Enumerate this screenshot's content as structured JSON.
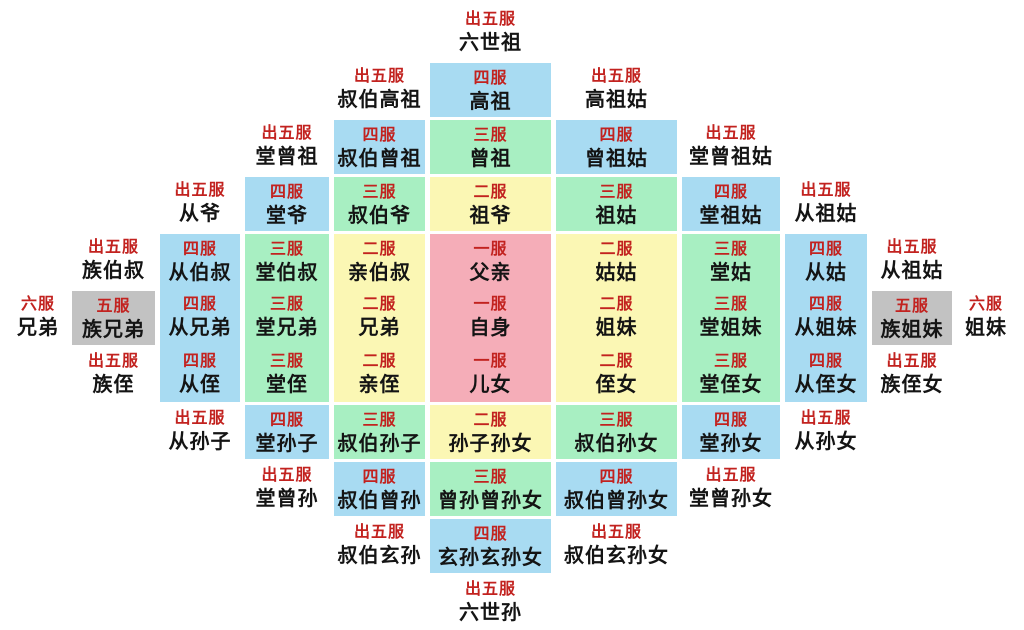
{
  "palette": {
    "rank_label_text": "#c2221f",
    "relation_name_text": "#141414",
    "background": "#ffffff",
    "rank_colors": {
      "一服": "#f5adb8",
      "二服": "#fbf7b4",
      "三服": "#a8efc2",
      "四服": "#a8dbf2",
      "五服": "#c2c2c2",
      "六服": "#ffffff",
      "出五服": "#ffffff"
    }
  },
  "grid": {
    "rows": 11,
    "cols": 11,
    "cells": [
      {
        "r": 1,
        "c": 5,
        "rank": "出五服",
        "name": "六世祖"
      },
      {
        "r": 2,
        "c": 4,
        "rank": "出五服",
        "name": "叔伯高祖"
      },
      {
        "r": 2,
        "c": 5,
        "rank": "四服",
        "name": "高祖"
      },
      {
        "r": 2,
        "c": 6,
        "rank": "出五服",
        "name": "高祖姑"
      },
      {
        "r": 3,
        "c": 3,
        "rank": "出五服",
        "name": "堂曾祖"
      },
      {
        "r": 3,
        "c": 4,
        "rank": "四服",
        "name": "叔伯曾祖"
      },
      {
        "r": 3,
        "c": 5,
        "rank": "三服",
        "name": "曾祖"
      },
      {
        "r": 3,
        "c": 6,
        "rank": "四服",
        "name": "曾祖姑"
      },
      {
        "r": 3,
        "c": 7,
        "rank": "出五服",
        "name": "堂曾祖姑"
      },
      {
        "r": 4,
        "c": 2,
        "rank": "出五服",
        "name": "从爷"
      },
      {
        "r": 4,
        "c": 3,
        "rank": "四服",
        "name": "堂爷"
      },
      {
        "r": 4,
        "c": 4,
        "rank": "三服",
        "name": "叔伯爷"
      },
      {
        "r": 4,
        "c": 5,
        "rank": "二服",
        "name": "祖爷"
      },
      {
        "r": 4,
        "c": 6,
        "rank": "三服",
        "name": "祖姑"
      },
      {
        "r": 4,
        "c": 7,
        "rank": "四服",
        "name": "堂祖姑"
      },
      {
        "r": 4,
        "c": 8,
        "rank": "出五服",
        "name": "从祖姑"
      },
      {
        "r": 5,
        "c": 1,
        "rank": "出五服",
        "name": "族伯叔"
      },
      {
        "r": 5,
        "c": 2,
        "rank": "四服",
        "name": "从伯叔"
      },
      {
        "r": 5,
        "c": 3,
        "rank": "三服",
        "name": "堂伯叔"
      },
      {
        "r": 5,
        "c": 4,
        "rank": "二服",
        "name": "亲伯叔"
      },
      {
        "r": 5,
        "c": 5,
        "rank": "一服",
        "name": "父亲"
      },
      {
        "r": 5,
        "c": 6,
        "rank": "二服",
        "name": "姑姑"
      },
      {
        "r": 5,
        "c": 7,
        "rank": "三服",
        "name": "堂姑"
      },
      {
        "r": 5,
        "c": 8,
        "rank": "四服",
        "name": "从姑"
      },
      {
        "r": 5,
        "c": 9,
        "rank": "出五服",
        "name": "从祖姑"
      },
      {
        "r": 6,
        "c": 0,
        "rank": "六服",
        "name": "兄弟"
      },
      {
        "r": 6,
        "c": 1,
        "rank": "五服",
        "name": "族兄弟"
      },
      {
        "r": 6,
        "c": 2,
        "rank": "四服",
        "name": "从兄弟"
      },
      {
        "r": 6,
        "c": 3,
        "rank": "三服",
        "name": "堂兄弟"
      },
      {
        "r": 6,
        "c": 4,
        "rank": "二服",
        "name": "兄弟"
      },
      {
        "r": 6,
        "c": 5,
        "rank": "一服",
        "name": "自身"
      },
      {
        "r": 6,
        "c": 6,
        "rank": "二服",
        "name": "姐妹"
      },
      {
        "r": 6,
        "c": 7,
        "rank": "三服",
        "name": "堂姐妹"
      },
      {
        "r": 6,
        "c": 8,
        "rank": "四服",
        "name": "从姐妹"
      },
      {
        "r": 6,
        "c": 9,
        "rank": "五服",
        "name": "族姐妹"
      },
      {
        "r": 6,
        "c": 10,
        "rank": "六服",
        "name": "姐妹"
      },
      {
        "r": 7,
        "c": 1,
        "rank": "出五服",
        "name": "族侄"
      },
      {
        "r": 7,
        "c": 2,
        "rank": "四服",
        "name": "从侄"
      },
      {
        "r": 7,
        "c": 3,
        "rank": "三服",
        "name": "堂侄"
      },
      {
        "r": 7,
        "c": 4,
        "rank": "二服",
        "name": "亲侄"
      },
      {
        "r": 7,
        "c": 5,
        "rank": "一服",
        "name": "儿女"
      },
      {
        "r": 7,
        "c": 6,
        "rank": "二服",
        "name": "侄女"
      },
      {
        "r": 7,
        "c": 7,
        "rank": "三服",
        "name": "堂侄女"
      },
      {
        "r": 7,
        "c": 8,
        "rank": "四服",
        "name": "从侄女"
      },
      {
        "r": 7,
        "c": 9,
        "rank": "出五服",
        "name": "族侄女"
      },
      {
        "r": 8,
        "c": 2,
        "rank": "出五服",
        "name": "从孙子"
      },
      {
        "r": 8,
        "c": 3,
        "rank": "四服",
        "name": "堂孙子"
      },
      {
        "r": 8,
        "c": 4,
        "rank": "三服",
        "name": "叔伯孙子"
      },
      {
        "r": 8,
        "c": 5,
        "rank": "二服",
        "name": "孙子孙女"
      },
      {
        "r": 8,
        "c": 6,
        "rank": "三服",
        "name": "叔伯孙女"
      },
      {
        "r": 8,
        "c": 7,
        "rank": "四服",
        "name": "堂孙女"
      },
      {
        "r": 8,
        "c": 8,
        "rank": "出五服",
        "name": "从孙女"
      },
      {
        "r": 9,
        "c": 3,
        "rank": "出五服",
        "name": "堂曾孙"
      },
      {
        "r": 9,
        "c": 4,
        "rank": "四服",
        "name": "叔伯曾孙"
      },
      {
        "r": 9,
        "c": 5,
        "rank": "三服",
        "name": "曾孙曾孙女"
      },
      {
        "r": 9,
        "c": 6,
        "rank": "四服",
        "name": "叔伯曾孙女"
      },
      {
        "r": 9,
        "c": 7,
        "rank": "出五服",
        "name": "堂曾孙女"
      },
      {
        "r": 10,
        "c": 4,
        "rank": "出五服",
        "name": "叔伯玄孙"
      },
      {
        "r": 10,
        "c": 5,
        "rank": "四服",
        "name": "玄孙玄孙女"
      },
      {
        "r": 10,
        "c": 6,
        "rank": "出五服",
        "name": "叔伯玄孙女"
      },
      {
        "r": 11,
        "c": 5,
        "rank": "出五服",
        "name": "六世孙"
      }
    ]
  }
}
